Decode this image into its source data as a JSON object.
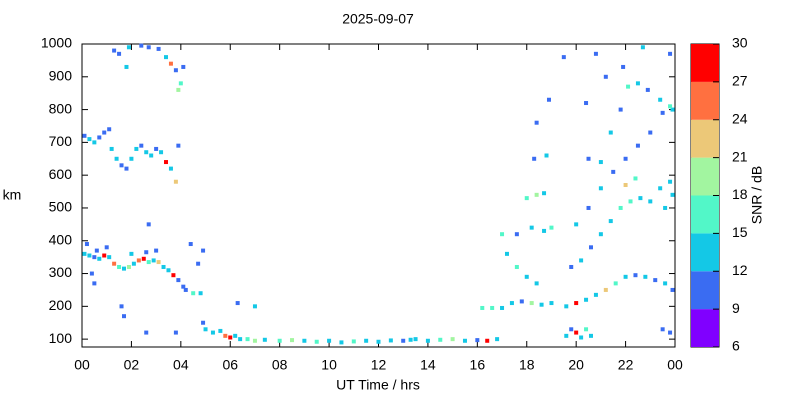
{
  "chart_data": {
    "type": "scatter",
    "title": "2025-09-07",
    "xlabel": "UT Time / hrs",
    "ylabel": "km",
    "xlim": [
      0,
      24
    ],
    "xticks": [
      {
        "value": 0,
        "label": "00"
      },
      {
        "value": 2,
        "label": "02"
      },
      {
        "value": 4,
        "label": "04"
      },
      {
        "value": 6,
        "label": "06"
      },
      {
        "value": 8,
        "label": "08"
      },
      10,
      12,
      14,
      16,
      18,
      20,
      22,
      {
        "value": 24,
        "label": "00"
      }
    ],
    "ylim": [
      76,
      1000
    ],
    "yticks": [
      100,
      200,
      300,
      400,
      500,
      600,
      700,
      800,
      900,
      1000
    ],
    "colorbar": {
      "label": "SNR / dB",
      "levels": [
        6,
        9,
        12,
        15,
        18,
        21,
        24,
        27,
        30
      ],
      "colors": [
        "#8000ff",
        "#3a6cf2",
        "#14c8e6",
        "#52f7c8",
        "#a2f5a0",
        "#ecc878",
        "#ff7040",
        "#ff0000"
      ]
    },
    "x": [
      0.1,
      0.3,
      0.5,
      0.7,
      0.9,
      1.1,
      1.3,
      1.5,
      1.7,
      1.9,
      2.1,
      2.3,
      2.5,
      2.7,
      2.9,
      3.1,
      3.3,
      3.5,
      3.7,
      3.9,
      4.1,
      0.2,
      0.6,
      1.0,
      2.0,
      2.6,
      3.0,
      0.4,
      0.5,
      1.6,
      1.7,
      2.7,
      3.8,
      2.6,
      0.1,
      0.3,
      0.5,
      0.7,
      0.9,
      1.1,
      1.2,
      1.4,
      1.6,
      1.8,
      2.0,
      2.2,
      2.4,
      2.6,
      2.8,
      3.0,
      3.2,
      3.4,
      3.6,
      3.8,
      3.9,
      1.3,
      1.5,
      1.9,
      2.4,
      2.7,
      3.1,
      3.4,
      3.6,
      3.8,
      4.1,
      4.0,
      3.9,
      1.8,
      4.2,
      4.5,
      4.8,
      4.9,
      5.0,
      5.3,
      5.6,
      5.8,
      6.0,
      6.2,
      6.4,
      6.7,
      7.0,
      7.4,
      7.0,
      6.3,
      4.7,
      4.9,
      4.4,
      8,
      8.5,
      9,
      9.5,
      10,
      10.5,
      11,
      11.5,
      12,
      12.5,
      13,
      13.5,
      14,
      14.5,
      15,
      15.5,
      16,
      16.4,
      16.8,
      13.3,
      16.2,
      16.6,
      17,
      17.4,
      17.8,
      18.2,
      18.6,
      19,
      17.2,
      17.6,
      18,
      18.4,
      17,
      17.6,
      18.2,
      18.7,
      19,
      18,
      18.4,
      18.7,
      18.3,
      18.8,
      18.4,
      18.9,
      19.6,
      19.8,
      20,
      20.2,
      20.4,
      20.6,
      19.6,
      20,
      20.4,
      20.8,
      21.2,
      21.6,
      22,
      22.4,
      22.8,
      23.2,
      23.6,
      23.9,
      19.8,
      20.2,
      20.6,
      21,
      21.4,
      21.8,
      22.2,
      22.6,
      23,
      23.4,
      23.8,
      20,
      20.5,
      21,
      21.5,
      22,
      22.5,
      23,
      23.5,
      23.9,
      21,
      21.4,
      21.8,
      22.1,
      22.5,
      22.9,
      23.4,
      23.8,
      20.5,
      22,
      22.4,
      23.6,
      23.9,
      23.8,
      23.5,
      20.4,
      21.2,
      21.9,
      19.5,
      20.8,
      22.7,
      23.8
    ],
    "values": [
      360,
      355,
      350,
      345,
      355,
      350,
      330,
      320,
      315,
      320,
      330,
      340,
      345,
      335,
      340,
      335,
      320,
      310,
      295,
      280,
      260,
      390,
      370,
      380,
      360,
      365,
      370,
      300,
      270,
      200,
      170,
      450,
      120,
      120,
      720,
      710,
      700,
      715,
      730,
      740,
      680,
      650,
      630,
      620,
      650,
      680,
      690,
      670,
      660,
      680,
      670,
      640,
      620,
      580,
      690,
      980,
      970,
      990,
      995,
      990,
      985,
      960,
      940,
      920,
      930,
      880,
      860,
      930,
      250,
      240,
      240,
      150,
      130,
      120,
      125,
      110,
      105,
      110,
      100,
      100,
      95,
      98,
      200,
      210,
      330,
      370,
      390,
      95,
      97,
      95,
      92,
      95,
      90,
      93,
      95,
      92,
      96,
      95,
      100,
      95,
      98,
      100,
      95,
      97,
      95,
      100,
      98,
      195,
      195,
      195,
      210,
      215,
      210,
      205,
      210,
      360,
      320,
      290,
      270,
      420,
      420,
      440,
      430,
      440,
      530,
      540,
      545,
      650,
      660,
      760,
      830,
      110,
      130,
      120,
      105,
      130,
      110,
      200,
      210,
      220,
      235,
      250,
      270,
      290,
      295,
      290,
      280,
      270,
      250,
      320,
      340,
      380,
      420,
      460,
      500,
      520,
      530,
      520,
      560,
      580,
      450,
      500,
      560,
      610,
      650,
      690,
      730,
      790,
      800,
      640,
      730,
      800,
      870,
      880,
      860,
      830,
      810,
      650,
      570,
      590,
      500,
      540,
      120,
      130,
      820,
      900,
      930,
      960,
      970,
      990,
      970
    ],
    "snr": [
      12,
      13,
      11,
      14,
      27,
      12,
      24,
      15,
      13,
      18,
      13,
      25,
      28,
      16,
      13,
      22,
      12,
      14,
      28,
      11,
      10,
      10,
      11,
      10,
      12,
      10,
      11,
      10,
      10,
      10,
      10,
      10,
      10,
      10,
      11,
      12,
      13,
      10,
      11,
      10,
      12,
      13,
      11,
      10,
      12,
      13,
      11,
      14,
      12,
      11,
      12,
      27,
      14,
      22,
      10,
      10,
      11,
      12,
      10,
      11,
      10,
      13,
      24,
      10,
      11,
      16,
      18,
      12,
      11,
      15,
      13,
      10,
      12,
      14,
      13,
      24,
      27,
      12,
      13,
      15,
      18,
      13,
      14,
      10,
      10,
      11,
      10,
      16,
      18,
      13,
      15,
      12,
      13,
      16,
      14,
      12,
      13,
      11,
      12,
      14,
      16,
      18,
      13,
      11,
      28,
      13,
      13,
      15,
      16,
      12,
      13,
      11,
      20,
      14,
      12,
      13,
      15,
      12,
      13,
      16,
      11,
      13,
      12,
      15,
      16,
      18,
      13,
      11,
      13,
      10,
      11,
      12,
      11,
      27,
      13,
      15,
      12,
      13,
      28,
      14,
      12,
      22,
      15,
      12,
      11,
      13,
      11,
      12,
      10,
      11,
      12,
      11,
      12,
      13,
      15,
      17,
      13,
      12,
      14,
      12,
      13,
      11,
      12,
      11,
      10,
      11,
      10,
      11,
      13,
      13,
      12,
      11,
      15,
      13,
      11,
      12,
      16,
      11,
      22,
      17,
      13,
      12,
      11,
      10,
      10,
      11,
      10,
      11,
      10,
      12,
      11
    ]
  }
}
